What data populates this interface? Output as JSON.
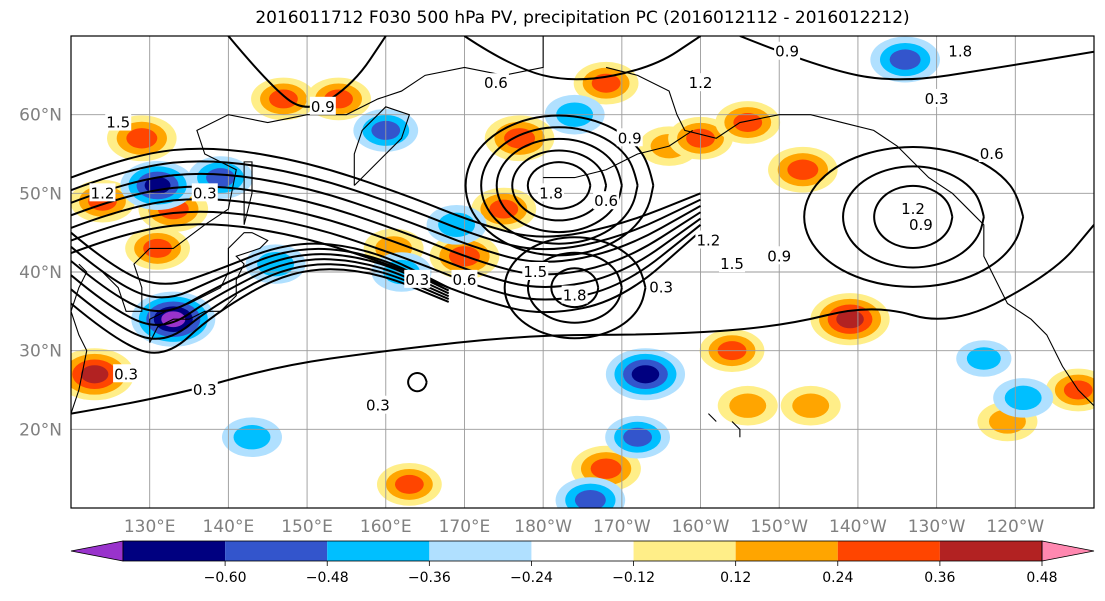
{
  "title": "2016011712 F030 500 hPa PV, precipitation PC (2016012112 - 2016012212)",
  "chart_data": {
    "type": "heatmap",
    "title": "2016011712 F030 500 hPa PV, precipitation PC (2016012112 - 2016012212)",
    "map_extent": {
      "lon_min": 120,
      "lon_max": 250,
      "lat_min": 10,
      "lat_max": 70
    },
    "lon_tick_labels": [
      "130°E",
      "140°E",
      "150°E",
      "160°E",
      "170°E",
      "180°W",
      "170°W",
      "160°W",
      "150°W",
      "140°W",
      "130°W",
      "120°W"
    ],
    "lat_tick_labels": [
      "20°N",
      "30°N",
      "40°N",
      "50°N",
      "60°N"
    ],
    "grid": true,
    "colorbar": {
      "orientation": "horizontal",
      "extend": "both",
      "colors": [
        "#9933cc",
        "#000080",
        "#3355cc",
        "#00bfff",
        "#b0e0ff",
        "#ffffff",
        "#ffee88",
        "#ffa500",
        "#ff4500",
        "#b22222",
        "#ff88b0"
      ],
      "bounds": [
        -0.72,
        -0.6,
        -0.48,
        -0.36,
        -0.24,
        -0.12,
        0.12,
        0.24,
        0.36,
        0.48,
        0.6,
        0.72
      ],
      "tick_labels": [
        "−0.60",
        "−0.48",
        "−0.36",
        "−0.24",
        "−0.12",
        "0.12",
        "0.24",
        "0.36",
        "0.48",
        "0.60"
      ]
    },
    "pv_contour_labels": [
      "0.3",
      "0.6",
      "0.9",
      "1.2",
      "1.5",
      "1.8"
    ],
    "pv_label_instances": [
      {
        "text": "0.9",
        "lon": 211,
        "lat": 68
      },
      {
        "text": "1.8",
        "lon": 233,
        "lat": 68
      },
      {
        "text": "0.3",
        "lon": 230,
        "lat": 62
      },
      {
        "text": "0.6",
        "lon": 237,
        "lat": 55
      },
      {
        "text": "1.2",
        "lon": 200,
        "lat": 64
      },
      {
        "text": "0.9",
        "lon": 152,
        "lat": 61
      },
      {
        "text": "1.5",
        "lon": 126,
        "lat": 59
      },
      {
        "text": "0.3",
        "lon": 137,
        "lat": 50
      },
      {
        "text": "0.6",
        "lon": 174,
        "lat": 64
      },
      {
        "text": "1.2",
        "lon": 124,
        "lat": 50
      },
      {
        "text": "0.9",
        "lon": 191,
        "lat": 57
      },
      {
        "text": "0.6",
        "lon": 188,
        "lat": 49
      },
      {
        "text": "1.8",
        "lon": 181,
        "lat": 50
      },
      {
        "text": "1.2",
        "lon": 227,
        "lat": 48
      },
      {
        "text": "0.9",
        "lon": 228,
        "lat": 46
      },
      {
        "text": "1.2",
        "lon": 201,
        "lat": 44
      },
      {
        "text": "1.5",
        "lon": 204,
        "lat": 41
      },
      {
        "text": "0.9",
        "lon": 210,
        "lat": 42
      },
      {
        "text": "0.3",
        "lon": 164,
        "lat": 39
      },
      {
        "text": "0.6",
        "lon": 170,
        "lat": 39
      },
      {
        "text": "1.5",
        "lon": 179,
        "lat": 40
      },
      {
        "text": "1.8",
        "lon": 184,
        "lat": 37
      },
      {
        "text": "0.3",
        "lon": 195,
        "lat": 38
      },
      {
        "text": "0.3",
        "lon": 127,
        "lat": 27
      },
      {
        "text": "0.3",
        "lon": 137,
        "lat": 25
      },
      {
        "text": "0.3",
        "lon": 159,
        "lat": 23
      }
    ],
    "precip_blobs": [
      {
        "lon": 129,
        "lat": 57,
        "value": 0.42
      },
      {
        "lon": 124,
        "lat": 49,
        "value": 0.36
      },
      {
        "lon": 133,
        "lat": 48,
        "value": 0.42
      },
      {
        "lon": 147,
        "lat": 62,
        "value": 0.36
      },
      {
        "lon": 154,
        "lat": 62,
        "value": 0.36
      },
      {
        "lon": 177,
        "lat": 57,
        "value": 0.42
      },
      {
        "lon": 188,
        "lat": 64,
        "value": 0.36
      },
      {
        "lon": 196,
        "lat": 56,
        "value": 0.3
      },
      {
        "lon": 200,
        "lat": 57,
        "value": 0.36
      },
      {
        "lon": 206,
        "lat": 59,
        "value": 0.36
      },
      {
        "lon": 213,
        "lat": 53,
        "value": 0.42
      },
      {
        "lon": 161,
        "lat": 43,
        "value": 0.3
      },
      {
        "lon": 170,
        "lat": 42,
        "value": 0.42
      },
      {
        "lon": 175,
        "lat": 48,
        "value": 0.36
      },
      {
        "lon": 131,
        "lat": 43,
        "value": 0.36
      },
      {
        "lon": 123,
        "lat": 27,
        "value": 0.54
      },
      {
        "lon": 219,
        "lat": 34,
        "value": 0.54
      },
      {
        "lon": 204,
        "lat": 30,
        "value": 0.36
      },
      {
        "lon": 206,
        "lat": 23,
        "value": 0.3
      },
      {
        "lon": 214,
        "lat": 23,
        "value": 0.3
      },
      {
        "lon": 188,
        "lat": 15,
        "value": 0.42
      },
      {
        "lon": 163,
        "lat": 13,
        "value": 0.36
      },
      {
        "lon": 239,
        "lat": 21,
        "value": 0.3
      },
      {
        "lon": 248,
        "lat": 25,
        "value": 0.36
      },
      {
        "lon": 131,
        "lat": 51,
        "value": -0.48
      },
      {
        "lon": 133,
        "lat": 34,
        "value": -0.6
      },
      {
        "lon": 160,
        "lat": 58,
        "value": -0.36
      },
      {
        "lon": 169,
        "lat": 46,
        "value": -0.3
      },
      {
        "lon": 193,
        "lat": 27,
        "value": -0.54
      },
      {
        "lon": 192,
        "lat": 19,
        "value": -0.36
      },
      {
        "lon": 186,
        "lat": 11,
        "value": -0.42
      },
      {
        "lon": 143,
        "lat": 19,
        "value": -0.3
      },
      {
        "lon": 226,
        "lat": 67,
        "value": -0.42
      },
      {
        "lon": 162,
        "lat": 40,
        "value": -0.3
      },
      {
        "lon": 146,
        "lat": 41,
        "value": -0.3
      },
      {
        "lon": 139,
        "lat": 52,
        "value": -0.36
      },
      {
        "lon": 236,
        "lat": 29,
        "value": -0.24
      },
      {
        "lon": 184,
        "lat": 60,
        "value": -0.3
      },
      {
        "lon": 241,
        "lat": 24,
        "value": -0.3
      }
    ]
  }
}
